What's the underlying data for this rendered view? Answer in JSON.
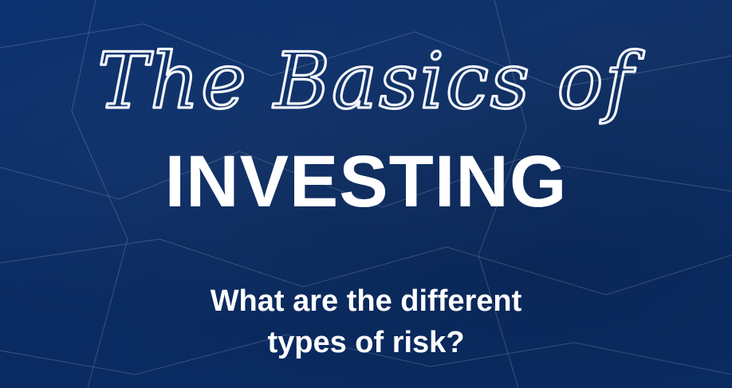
{
  "slide": {
    "script_heading": "The Basics of",
    "main_heading": "INVESTING",
    "question_line1": "What are the different",
    "question_line2": "types of risk?"
  },
  "colors": {
    "background": "#0b2e66",
    "text": "#ffffff"
  }
}
